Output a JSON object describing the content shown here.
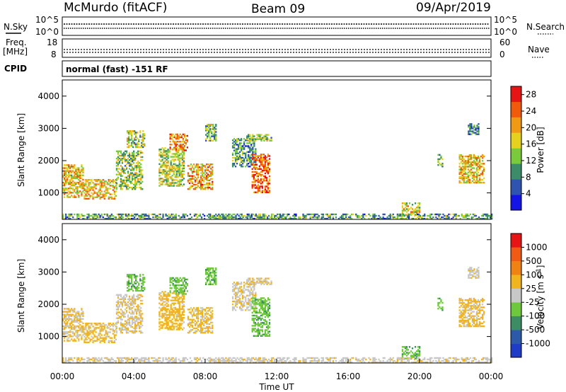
{
  "header": {
    "station": "McMurdo (fitACF)",
    "beam": "Beam 09",
    "date": "09/Apr/2019"
  },
  "status_panels": {
    "nsky_label": "N.Sky",
    "nsearch_label": "N.Search",
    "nsky_ticks": [
      "10^5",
      "10^0"
    ],
    "nsearch_ticks": [
      "10^5",
      "10^0"
    ],
    "freq_label": "Freq.",
    "freq_unit": "[MHz]",
    "freq_ticks": [
      "18",
      "8"
    ],
    "nave_label": "Nave",
    "nave_ticks": [
      "60",
      "0"
    ],
    "cpid_label": "CPID",
    "cpid_text": "normal (fast) -151 RF"
  },
  "chart_data": [
    {
      "type": "heatmap",
      "name": "power",
      "ylabel": "Slant Range [km]",
      "xlabel": "",
      "ylim": [
        180,
        4500
      ],
      "yticks": [
        "1000",
        "2000",
        "3000",
        "4000"
      ],
      "xlim": [
        0,
        24
      ],
      "colorbar": {
        "label": "Power [dB]",
        "ticks": [
          "4",
          "8",
          "12",
          "16",
          "20",
          "24",
          "28"
        ],
        "range": [
          0,
          30
        ],
        "colors": [
          "#1414e6",
          "#2e54b0",
          "#3c8c6a",
          "#7acb3c",
          "#e6d21e",
          "#f09a14",
          "#f05a0a",
          "#e61414"
        ]
      },
      "echo_regions": [
        {
          "t": [
            0.0,
            1.2
          ],
          "r": [
            850,
            1850
          ],
          "v": 18
        },
        {
          "t": [
            1.2,
            3.0
          ],
          "r": [
            800,
            1400
          ],
          "v": 19
        },
        {
          "t": [
            3.0,
            4.5
          ],
          "r": [
            1100,
            2300
          ],
          "v": 14
        },
        {
          "t": [
            3.6,
            4.6
          ],
          "r": [
            2400,
            2900
          ],
          "v": 14
        },
        {
          "t": [
            5.4,
            6.8
          ],
          "r": [
            1200,
            2400
          ],
          "v": 15
        },
        {
          "t": [
            6.0,
            7.0
          ],
          "r": [
            2300,
            2800
          ],
          "v": 22
        },
        {
          "t": [
            7.0,
            8.4
          ],
          "r": [
            1100,
            1900
          ],
          "v": 20
        },
        {
          "t": [
            8.0,
            8.6
          ],
          "r": [
            2600,
            3100
          ],
          "v": 12
        },
        {
          "t": [
            9.5,
            10.8
          ],
          "r": [
            1800,
            2700
          ],
          "v": 10
        },
        {
          "t": [
            10.6,
            11.6
          ],
          "r": [
            1000,
            2200
          ],
          "v": 24
        },
        {
          "t": [
            10.3,
            11.7
          ],
          "r": [
            2600,
            2800
          ],
          "v": 13
        },
        {
          "t": [
            19.0,
            20.0
          ],
          "r": [
            300,
            700
          ],
          "v": 17
        },
        {
          "t": [
            21.0,
            21.3
          ],
          "r": [
            1800,
            2200
          ],
          "v": 12
        },
        {
          "t": [
            22.2,
            23.6
          ],
          "r": [
            1300,
            2200
          ],
          "v": 18
        },
        {
          "t": [
            22.7,
            23.3
          ],
          "r": [
            2800,
            3150
          ],
          "v": 8
        },
        {
          "t": [
            0.0,
            24.0
          ],
          "r": [
            180,
            320
          ],
          "v": 10
        }
      ]
    },
    {
      "type": "heatmap",
      "name": "velocity",
      "ylabel": "Slant Range [km]",
      "xlabel": "Time UT",
      "ylim": [
        180,
        4500
      ],
      "yticks": [
        "1000",
        "2000",
        "3000",
        "4000"
      ],
      "xlim": [
        0,
        24
      ],
      "xticks": [
        "00:00",
        "04:00",
        "08:00",
        "12:00",
        "16:00",
        "20:00",
        "00:00"
      ],
      "colorbar": {
        "label": "Velocity [m s",
        "label_sup": "-1",
        "label_end": "]",
        "ticks": [
          "1000",
          "500",
          "100",
          "25",
          "-25",
          "-100",
          "-500",
          "-1000"
        ],
        "range": [
          -1200,
          1200
        ],
        "colors": [
          "#1e3cc8",
          "#2c5aa8",
          "#3c8c64",
          "#6ec83c",
          "#c8c8c8",
          "#f0b41e",
          "#f08214",
          "#f05a14",
          "#e61414"
        ]
      },
      "echo_regions": [
        {
          "t": [
            0.0,
            1.2
          ],
          "r": [
            850,
            1850
          ],
          "v": 150
        },
        {
          "t": [
            1.2,
            3.0
          ],
          "r": [
            800,
            1400
          ],
          "v": 180
        },
        {
          "t": [
            3.0,
            4.5
          ],
          "r": [
            1100,
            2300
          ],
          "v": 120
        },
        {
          "t": [
            3.6,
            4.6
          ],
          "r": [
            2400,
            2900
          ],
          "v": -300
        },
        {
          "t": [
            5.4,
            6.8
          ],
          "r": [
            1200,
            2400
          ],
          "v": 250
        },
        {
          "t": [
            6.0,
            7.0
          ],
          "r": [
            2300,
            2800
          ],
          "v": -300
        },
        {
          "t": [
            7.0,
            8.4
          ],
          "r": [
            1100,
            1900
          ],
          "v": 200
        },
        {
          "t": [
            8.0,
            8.6
          ],
          "r": [
            2600,
            3100
          ],
          "v": -300
        },
        {
          "t": [
            9.5,
            10.8
          ],
          "r": [
            1800,
            2700
          ],
          "v": 80
        },
        {
          "t": [
            10.6,
            11.6
          ],
          "r": [
            1000,
            2200
          ],
          "v": -300
        },
        {
          "t": [
            10.3,
            11.7
          ],
          "r": [
            2600,
            2800
          ],
          "v": 80
        },
        {
          "t": [
            19.0,
            20.0
          ],
          "r": [
            300,
            700
          ],
          "v": -300
        },
        {
          "t": [
            21.0,
            21.3
          ],
          "r": [
            1800,
            2200
          ],
          "v": -300
        },
        {
          "t": [
            22.2,
            23.6
          ],
          "r": [
            1300,
            2200
          ],
          "v": 200
        },
        {
          "t": [
            22.7,
            23.3
          ],
          "r": [
            2800,
            3150
          ],
          "v": 60
        },
        {
          "t": [
            0.0,
            24.0
          ],
          "r": [
            180,
            320
          ],
          "v": 50
        }
      ]
    }
  ]
}
